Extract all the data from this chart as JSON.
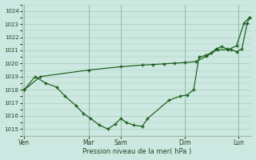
{
  "xlabel": "Pression niveau de la mer( hPa )",
  "bg_color": "#cce8e0",
  "grid_color": "#aaccbb",
  "line_color": "#1a5c1a",
  "ylim": [
    1014.5,
    1024.5
  ],
  "yticks": [
    1015,
    1016,
    1017,
    1018,
    1019,
    1020,
    1021,
    1022,
    1023,
    1024
  ],
  "day_labels": [
    "Ven",
    "Mar",
    "Sam",
    "Dim",
    "Lun"
  ],
  "day_positions": [
    0,
    6,
    9,
    15,
    20
  ],
  "xlim": [
    -0.2,
    21.2
  ],
  "s1x": [
    0,
    1.5,
    6,
    9,
    11,
    12,
    13,
    14,
    15,
    16,
    17,
    18,
    19,
    19.8,
    20.5,
    21
  ],
  "s1y": [
    1018.0,
    1019.0,
    1019.5,
    1019.75,
    1019.88,
    1019.92,
    1019.97,
    1020.02,
    1020.07,
    1020.15,
    1020.55,
    1021.05,
    1021.05,
    1021.35,
    1023.1,
    1023.5
  ],
  "s2x": [
    0,
    1.0,
    2.0,
    3.0,
    3.8,
    4.8,
    5.5,
    6.2,
    7.0,
    7.8,
    8.5,
    9.0,
    9.5,
    10.2,
    11.0,
    11.5,
    13.5,
    14.5,
    15.2,
    15.8,
    16.3,
    16.9,
    17.4,
    17.9,
    18.4,
    18.9,
    19.3,
    19.8,
    20.3,
    20.8,
    21.0
  ],
  "s2y": [
    1018.0,
    1019.0,
    1018.5,
    1018.2,
    1017.5,
    1016.8,
    1016.2,
    1015.8,
    1015.3,
    1015.0,
    1015.4,
    1015.8,
    1015.5,
    1015.3,
    1015.2,
    1015.8,
    1017.2,
    1017.5,
    1017.6,
    1018.0,
    1020.5,
    1020.6,
    1020.8,
    1021.1,
    1021.3,
    1021.1,
    1021.05,
    1020.9,
    1021.1,
    1023.1,
    1023.5
  ]
}
